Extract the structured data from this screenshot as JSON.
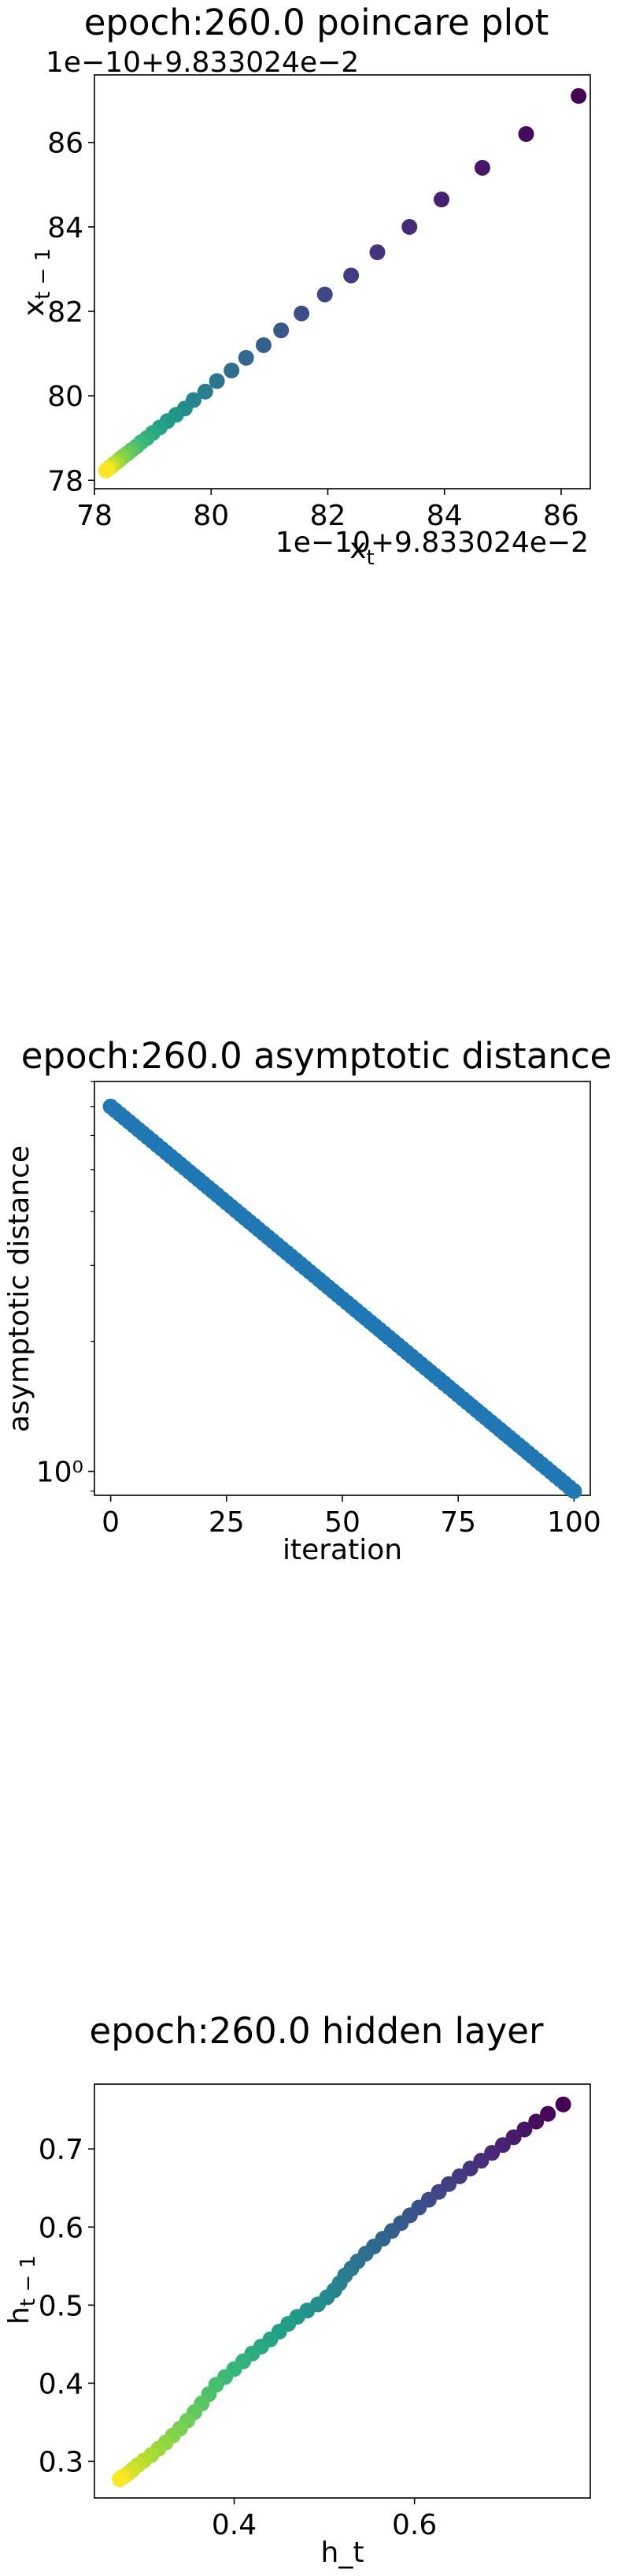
{
  "chart_data": [
    {
      "type": "scatter",
      "title": "epoch:260.0 poincare plot",
      "xlabel": "x_t",
      "ylabel": "x_{t-1}",
      "x_offset_text": "1e−10+9.833024e−2",
      "y_offset_text": "1e−10+9.833024e−2",
      "xlim": [
        78,
        86.5
      ],
      "ylim": [
        77.8,
        87.6
      ],
      "xticks": [
        78,
        80,
        82,
        84,
        86
      ],
      "yticks": [
        78,
        80,
        82,
        84,
        86
      ],
      "colormap": "viridis",
      "points": [
        [
          86.3,
          87.1
        ],
        [
          85.4,
          86.2
        ],
        [
          84.65,
          85.4
        ],
        [
          83.95,
          84.65
        ],
        [
          83.4,
          84.0
        ],
        [
          82.85,
          83.4
        ],
        [
          82.4,
          82.85
        ],
        [
          81.95,
          82.4
        ],
        [
          81.55,
          81.95
        ],
        [
          81.2,
          81.55
        ],
        [
          80.9,
          81.2
        ],
        [
          80.6,
          80.9
        ],
        [
          80.35,
          80.6
        ],
        [
          80.1,
          80.35
        ],
        [
          79.9,
          80.1
        ],
        [
          79.7,
          79.9
        ],
        [
          79.55,
          79.7
        ],
        [
          79.4,
          79.55
        ],
        [
          79.25,
          79.4
        ],
        [
          79.12,
          79.25
        ],
        [
          79.0,
          79.12
        ],
        [
          78.9,
          79.0
        ],
        [
          78.8,
          78.9
        ],
        [
          78.72,
          78.8
        ],
        [
          78.64,
          78.72
        ],
        [
          78.57,
          78.64
        ],
        [
          78.5,
          78.57
        ],
        [
          78.44,
          78.5
        ],
        [
          78.39,
          78.44
        ],
        [
          78.34,
          78.39
        ],
        [
          78.3,
          78.34
        ],
        [
          78.26,
          78.3
        ],
        [
          78.23,
          78.26
        ],
        [
          78.2,
          78.23
        ]
      ]
    },
    {
      "type": "scatter",
      "title": "epoch:260.0 asymptotic distance",
      "xlabel": "iteration",
      "ylabel": "asymptotic distance",
      "yscale": "log",
      "xlim": [
        -3.5,
        103.5
      ],
      "ylim": [
        0.88,
        8.0
      ],
      "xticks": [
        0,
        25,
        50,
        75,
        100
      ],
      "ytick_labels": [
        "10⁰"
      ],
      "color": "#1f77b4",
      "n_points": 101,
      "y_start": 7.0,
      "y_end": 0.9
    },
    {
      "type": "scatter",
      "title": "epoch:260.0 hidden layer",
      "xlabel": "h_t",
      "ylabel": "h_{t-1}",
      "xlim": [
        0.245,
        0.795
      ],
      "ylim": [
        0.253,
        0.783
      ],
      "xticks": [
        0.4,
        0.6
      ],
      "yticks": [
        0.3,
        0.4,
        0.5,
        0.6,
        0.7
      ],
      "colormap": "viridis",
      "points": [
        [
          0.765,
          0.757
        ],
        [
          0.748,
          0.745
        ],
        [
          0.735,
          0.735
        ],
        [
          0.722,
          0.725
        ],
        [
          0.71,
          0.715
        ],
        [
          0.698,
          0.705
        ],
        [
          0.686,
          0.695
        ],
        [
          0.674,
          0.685
        ],
        [
          0.662,
          0.675
        ],
        [
          0.65,
          0.665
        ],
        [
          0.638,
          0.655
        ],
        [
          0.627,
          0.645
        ],
        [
          0.616,
          0.635
        ],
        [
          0.605,
          0.625
        ],
        [
          0.595,
          0.615
        ],
        [
          0.585,
          0.605
        ],
        [
          0.575,
          0.595
        ],
        [
          0.565,
          0.585
        ],
        [
          0.555,
          0.575
        ],
        [
          0.546,
          0.566
        ],
        [
          0.537,
          0.556
        ],
        [
          0.53,
          0.547
        ],
        [
          0.523,
          0.538
        ],
        [
          0.517,
          0.528
        ],
        [
          0.511,
          0.519
        ],
        [
          0.503,
          0.51
        ],
        [
          0.493,
          0.501
        ],
        [
          0.481,
          0.493
        ],
        [
          0.47,
          0.485
        ],
        [
          0.46,
          0.476
        ],
        [
          0.45,
          0.466
        ],
        [
          0.44,
          0.456
        ],
        [
          0.43,
          0.447
        ],
        [
          0.42,
          0.438
        ],
        [
          0.41,
          0.428
        ],
        [
          0.4,
          0.418
        ],
        [
          0.39,
          0.408
        ],
        [
          0.38,
          0.398
        ],
        [
          0.372,
          0.386
        ],
        [
          0.364,
          0.374
        ],
        [
          0.356,
          0.363
        ],
        [
          0.348,
          0.352
        ],
        [
          0.34,
          0.342
        ],
        [
          0.332,
          0.333
        ],
        [
          0.324,
          0.324
        ],
        [
          0.316,
          0.316
        ],
        [
          0.308,
          0.308
        ],
        [
          0.3,
          0.301
        ],
        [
          0.293,
          0.295
        ],
        [
          0.287,
          0.289
        ],
        [
          0.282,
          0.284
        ],
        [
          0.278,
          0.281
        ],
        [
          0.275,
          0.279
        ],
        [
          0.273,
          0.277
        ]
      ]
    }
  ]
}
